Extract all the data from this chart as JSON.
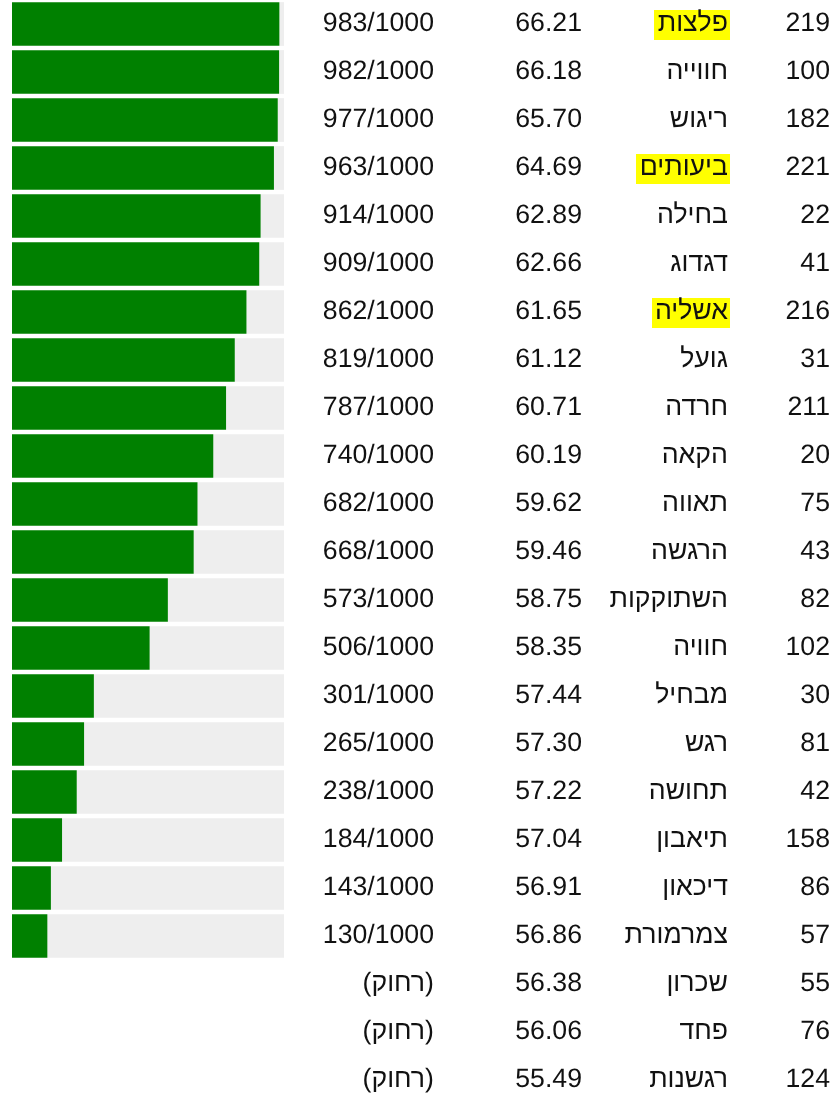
{
  "chart_data": {
    "type": "bar",
    "orientation": "horizontal",
    "stacked": true,
    "categories": [
      "פלצות",
      "חווייה",
      "ריגוש",
      "ביעותים",
      "בחילה",
      "דגדוג",
      "אשליה",
      "גועל",
      "חרדה",
      "הקאה",
      "תאווה",
      "הרגשה",
      "השתוקקות",
      "חוויה",
      "מבחיל",
      "רגש",
      "תחושה",
      "תיאבון",
      "דיכאון",
      "צמרמורת",
      "שכרון",
      "פחד",
      "רגשנות"
    ],
    "series": [
      {
        "color": "#008000",
        "values": [
          983,
          982,
          977,
          963,
          914,
          909,
          862,
          819,
          787,
          740,
          682,
          668,
          573,
          506,
          301,
          265,
          238,
          184,
          143,
          130,
          null,
          null,
          null
        ],
        "value_labels": [
          "983/1000",
          "982/1000",
          "977/1000",
          "963/1000",
          "914/1000",
          "909/1000",
          "862/1000",
          "819/1000",
          "787/1000",
          "740/1000",
          "682/1000",
          "668/1000",
          "573/1000",
          "506/1000",
          "301/1000",
          "265/1000",
          "238/1000",
          "184/1000",
          "143/1000",
          "130/1000",
          "(רחוק)",
          "(רחוק)",
          "(רחוק)"
        ]
      },
      {
        "color": "#eeeeee",
        "values": [
          17,
          18,
          23,
          37,
          86,
          91,
          138,
          181,
          213,
          260,
          318,
          332,
          427,
          494,
          699,
          735,
          762,
          816,
          857,
          870,
          null,
          null,
          null
        ]
      }
    ],
    "xlim": [
      0,
      1000
    ],
    "tick_labels": "y",
    "annotations": [
      "219",
      "66.21",
      "100",
      "66.18",
      "182",
      "65.70",
      "221",
      "64.69",
      "22",
      "62.89",
      "41",
      "62.66",
      "216",
      "61.65",
      "31",
      "61.12",
      "211",
      "60.71",
      "20",
      "60.19",
      "75",
      "59.62",
      "43",
      "59.46",
      "82",
      "58.75",
      "102",
      "58.35",
      "30",
      "57.44",
      "81",
      "57.30",
      "42",
      "57.22",
      "158",
      "57.04",
      "86",
      "56.91",
      "57",
      "56.86",
      "55",
      "56.38",
      "76",
      "56.06",
      "124",
      "55.49"
    ]
  }
}
